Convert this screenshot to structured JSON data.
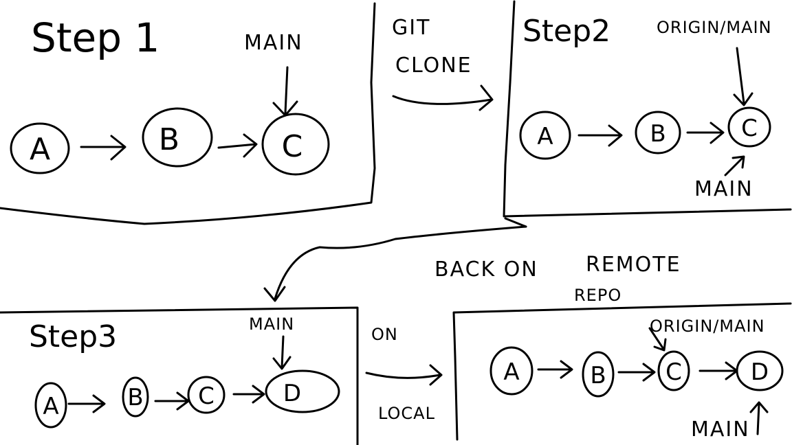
{
  "panels": {
    "step1": {
      "title": "Step 1",
      "pointer": "MAIN",
      "nodes": [
        "A",
        "B",
        "C"
      ]
    },
    "step2": {
      "title": "Step2",
      "pointer_top": "ORIGIN/MAIN",
      "pointer_bottom": "MAIN",
      "nodes": [
        "A",
        "B",
        "C"
      ]
    },
    "step3": {
      "title": "Step3",
      "pointer": "MAIN",
      "nodes": [
        "A",
        "B",
        "C",
        "D"
      ]
    },
    "step4": {
      "pointer_top": "ORIGIN/MAIN",
      "pointer_bottom": "MAIN",
      "nodes": [
        "A",
        "B",
        "C",
        "D"
      ]
    }
  },
  "transitions": {
    "clone": {
      "line1": "GIT",
      "line2": "CLONE"
    },
    "remote": {
      "line1": "BACK ON",
      "line2": "REMOTE",
      "line3": "REPO"
    },
    "local": {
      "line1": "ON",
      "line2": "LOCAL"
    }
  }
}
